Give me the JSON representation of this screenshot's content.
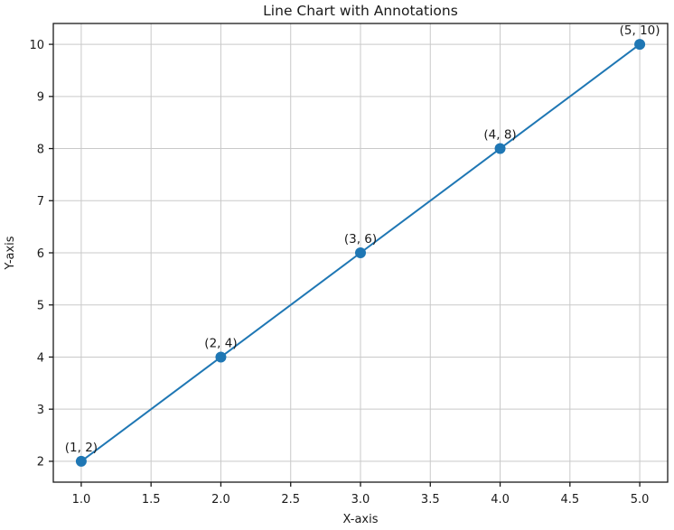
{
  "chart_data": {
    "type": "line",
    "title": "Line Chart with Annotations",
    "xlabel": "X-axis",
    "ylabel": "Y-axis",
    "x": [
      1,
      2,
      3,
      4,
      5
    ],
    "y": [
      2,
      4,
      6,
      8,
      10
    ],
    "point_annotations": [
      "(1, 2)",
      "(2, 4)",
      "(3, 6)",
      "(4, 8)",
      "(5, 10)"
    ],
    "x_tick_labels": [
      "1.0",
      "1.5",
      "2.0",
      "2.5",
      "3.0",
      "3.5",
      "4.0",
      "4.5",
      "5.0"
    ],
    "x_tick_values": [
      1.0,
      1.5,
      2.0,
      2.5,
      3.0,
      3.5,
      4.0,
      4.5,
      5.0
    ],
    "y_tick_labels": [
      "2",
      "3",
      "4",
      "5",
      "6",
      "7",
      "8",
      "9",
      "10"
    ],
    "y_tick_values": [
      2,
      3,
      4,
      5,
      6,
      7,
      8,
      9,
      10
    ],
    "xlim": [
      0.8,
      5.2
    ],
    "ylim": [
      1.6,
      10.4
    ],
    "grid": true,
    "legend": false,
    "line_color": "#1f77b4",
    "marker_color": "#1f77b4",
    "grid_color": "#c9c9c9",
    "frame_color": "#1a1a1a",
    "marker": "o"
  }
}
